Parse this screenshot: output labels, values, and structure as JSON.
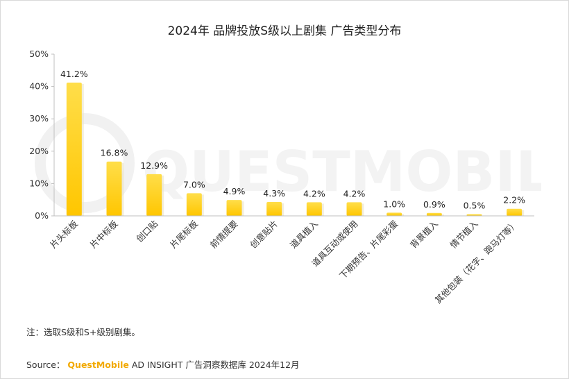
{
  "chart_data": {
    "type": "bar",
    "title": "2024年 品牌投放S级以上剧集 广告类型分布",
    "categories": [
      "片头标板",
      "片中标板",
      "创口贴",
      "片尾标板",
      "前情提要",
      "创意贴片",
      "道具植入",
      "道具互动或使用",
      "下期预告、片尾彩蛋",
      "背景植入",
      "情节植入",
      "其他包装（花字、跑马灯等）"
    ],
    "values": [
      41.2,
      16.8,
      12.9,
      7.0,
      4.9,
      4.3,
      4.2,
      4.2,
      1.0,
      0.9,
      0.5,
      2.2
    ],
    "data_labels": [
      "41.2%",
      "16.8%",
      "12.9%",
      "7.0%",
      "4.9%",
      "4.3%",
      "4.2%",
      "4.2%",
      "1.0%",
      "0.9%",
      "0.5%",
      "2.2%"
    ],
    "yticks": [
      0,
      10,
      20,
      30,
      40,
      50
    ],
    "ytick_labels": [
      "0%",
      "10%",
      "20%",
      "30%",
      "40%",
      "50%"
    ],
    "ylim": [
      0,
      50
    ],
    "grid": false,
    "bar_color": "#ffc600",
    "bar_color_top": "#ffde4a"
  },
  "note": "注：选取S级和S+级别剧集。",
  "source": {
    "prefix": "Source：",
    "brand": "QuestMobile",
    "suffix": "AD INSIGHT 广告洞察数据库 2024年12月"
  },
  "watermark": "QUESTMOBILE"
}
